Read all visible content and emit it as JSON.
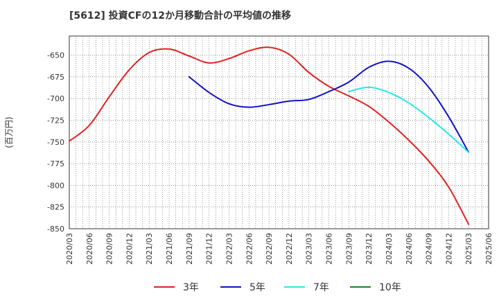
{
  "title": "[5612]  投資CFの12か月移動合計の平均値の推移",
  "chart_data": {
    "type": "line",
    "title": "[5612]  投資CFの12か月移動合計の平均値の推移",
    "ylabel": "(百万円)",
    "xlabel": "",
    "ylim": [
      -850,
      -628
    ],
    "yticks": [
      -650,
      -675,
      -700,
      -725,
      -750,
      -775,
      -800,
      -825,
      -850
    ],
    "x_tick_labels": [
      "2020/03",
      "2020/06",
      "2020/09",
      "2020/12",
      "2021/03",
      "2021/06",
      "2021/09",
      "2021/12",
      "2022/03",
      "2022/06",
      "2022/09",
      "2022/12",
      "2023/03",
      "2023/06",
      "2023/09",
      "2023/12",
      "2024/03",
      "2024/06",
      "2024/09",
      "2024/12",
      "2025/03",
      "2025/06"
    ],
    "grid": true,
    "legend_position": "bottom",
    "series": [
      {
        "name": "3年",
        "color": "#e02020",
        "points": [
          [
            "2020/03",
            -749
          ],
          [
            "2020/06",
            -731
          ],
          [
            "2020/09",
            -698
          ],
          [
            "2020/12",
            -667
          ],
          [
            "2021/03",
            -647
          ],
          [
            "2021/06",
            -643
          ],
          [
            "2021/09",
            -651
          ],
          [
            "2021/12",
            -659
          ],
          [
            "2022/03",
            -654
          ],
          [
            "2022/06",
            -645
          ],
          [
            "2022/09",
            -641
          ],
          [
            "2022/12",
            -649
          ],
          [
            "2023/03",
            -670
          ],
          [
            "2023/06",
            -686
          ],
          [
            "2023/09",
            -697
          ],
          [
            "2023/12",
            -709
          ],
          [
            "2024/03",
            -727
          ],
          [
            "2024/06",
            -748
          ],
          [
            "2024/09",
            -772
          ],
          [
            "2024/12",
            -802
          ],
          [
            "2025/03",
            -845
          ]
        ]
      },
      {
        "name": "5年",
        "color": "#1010c8",
        "points": [
          [
            "2021/09",
            -675
          ],
          [
            "2021/12",
            -693
          ],
          [
            "2022/03",
            -706
          ],
          [
            "2022/06",
            -710
          ],
          [
            "2022/09",
            -707
          ],
          [
            "2022/12",
            -703
          ],
          [
            "2023/03",
            -701
          ],
          [
            "2023/06",
            -692
          ],
          [
            "2023/09",
            -681
          ],
          [
            "2023/12",
            -664
          ],
          [
            "2024/03",
            -657
          ],
          [
            "2024/06",
            -665
          ],
          [
            "2024/09",
            -687
          ],
          [
            "2024/12",
            -721
          ],
          [
            "2025/03",
            -762
          ]
        ]
      },
      {
        "name": "7年",
        "color": "#22e8e8",
        "points": [
          [
            "2023/09",
            -692
          ],
          [
            "2023/12",
            -687
          ],
          [
            "2024/03",
            -693
          ],
          [
            "2024/06",
            -705
          ],
          [
            "2024/09",
            -722
          ],
          [
            "2024/12",
            -741
          ],
          [
            "2025/03",
            -762
          ]
        ]
      },
      {
        "name": "10年",
        "color": "#208020",
        "points": []
      }
    ]
  }
}
